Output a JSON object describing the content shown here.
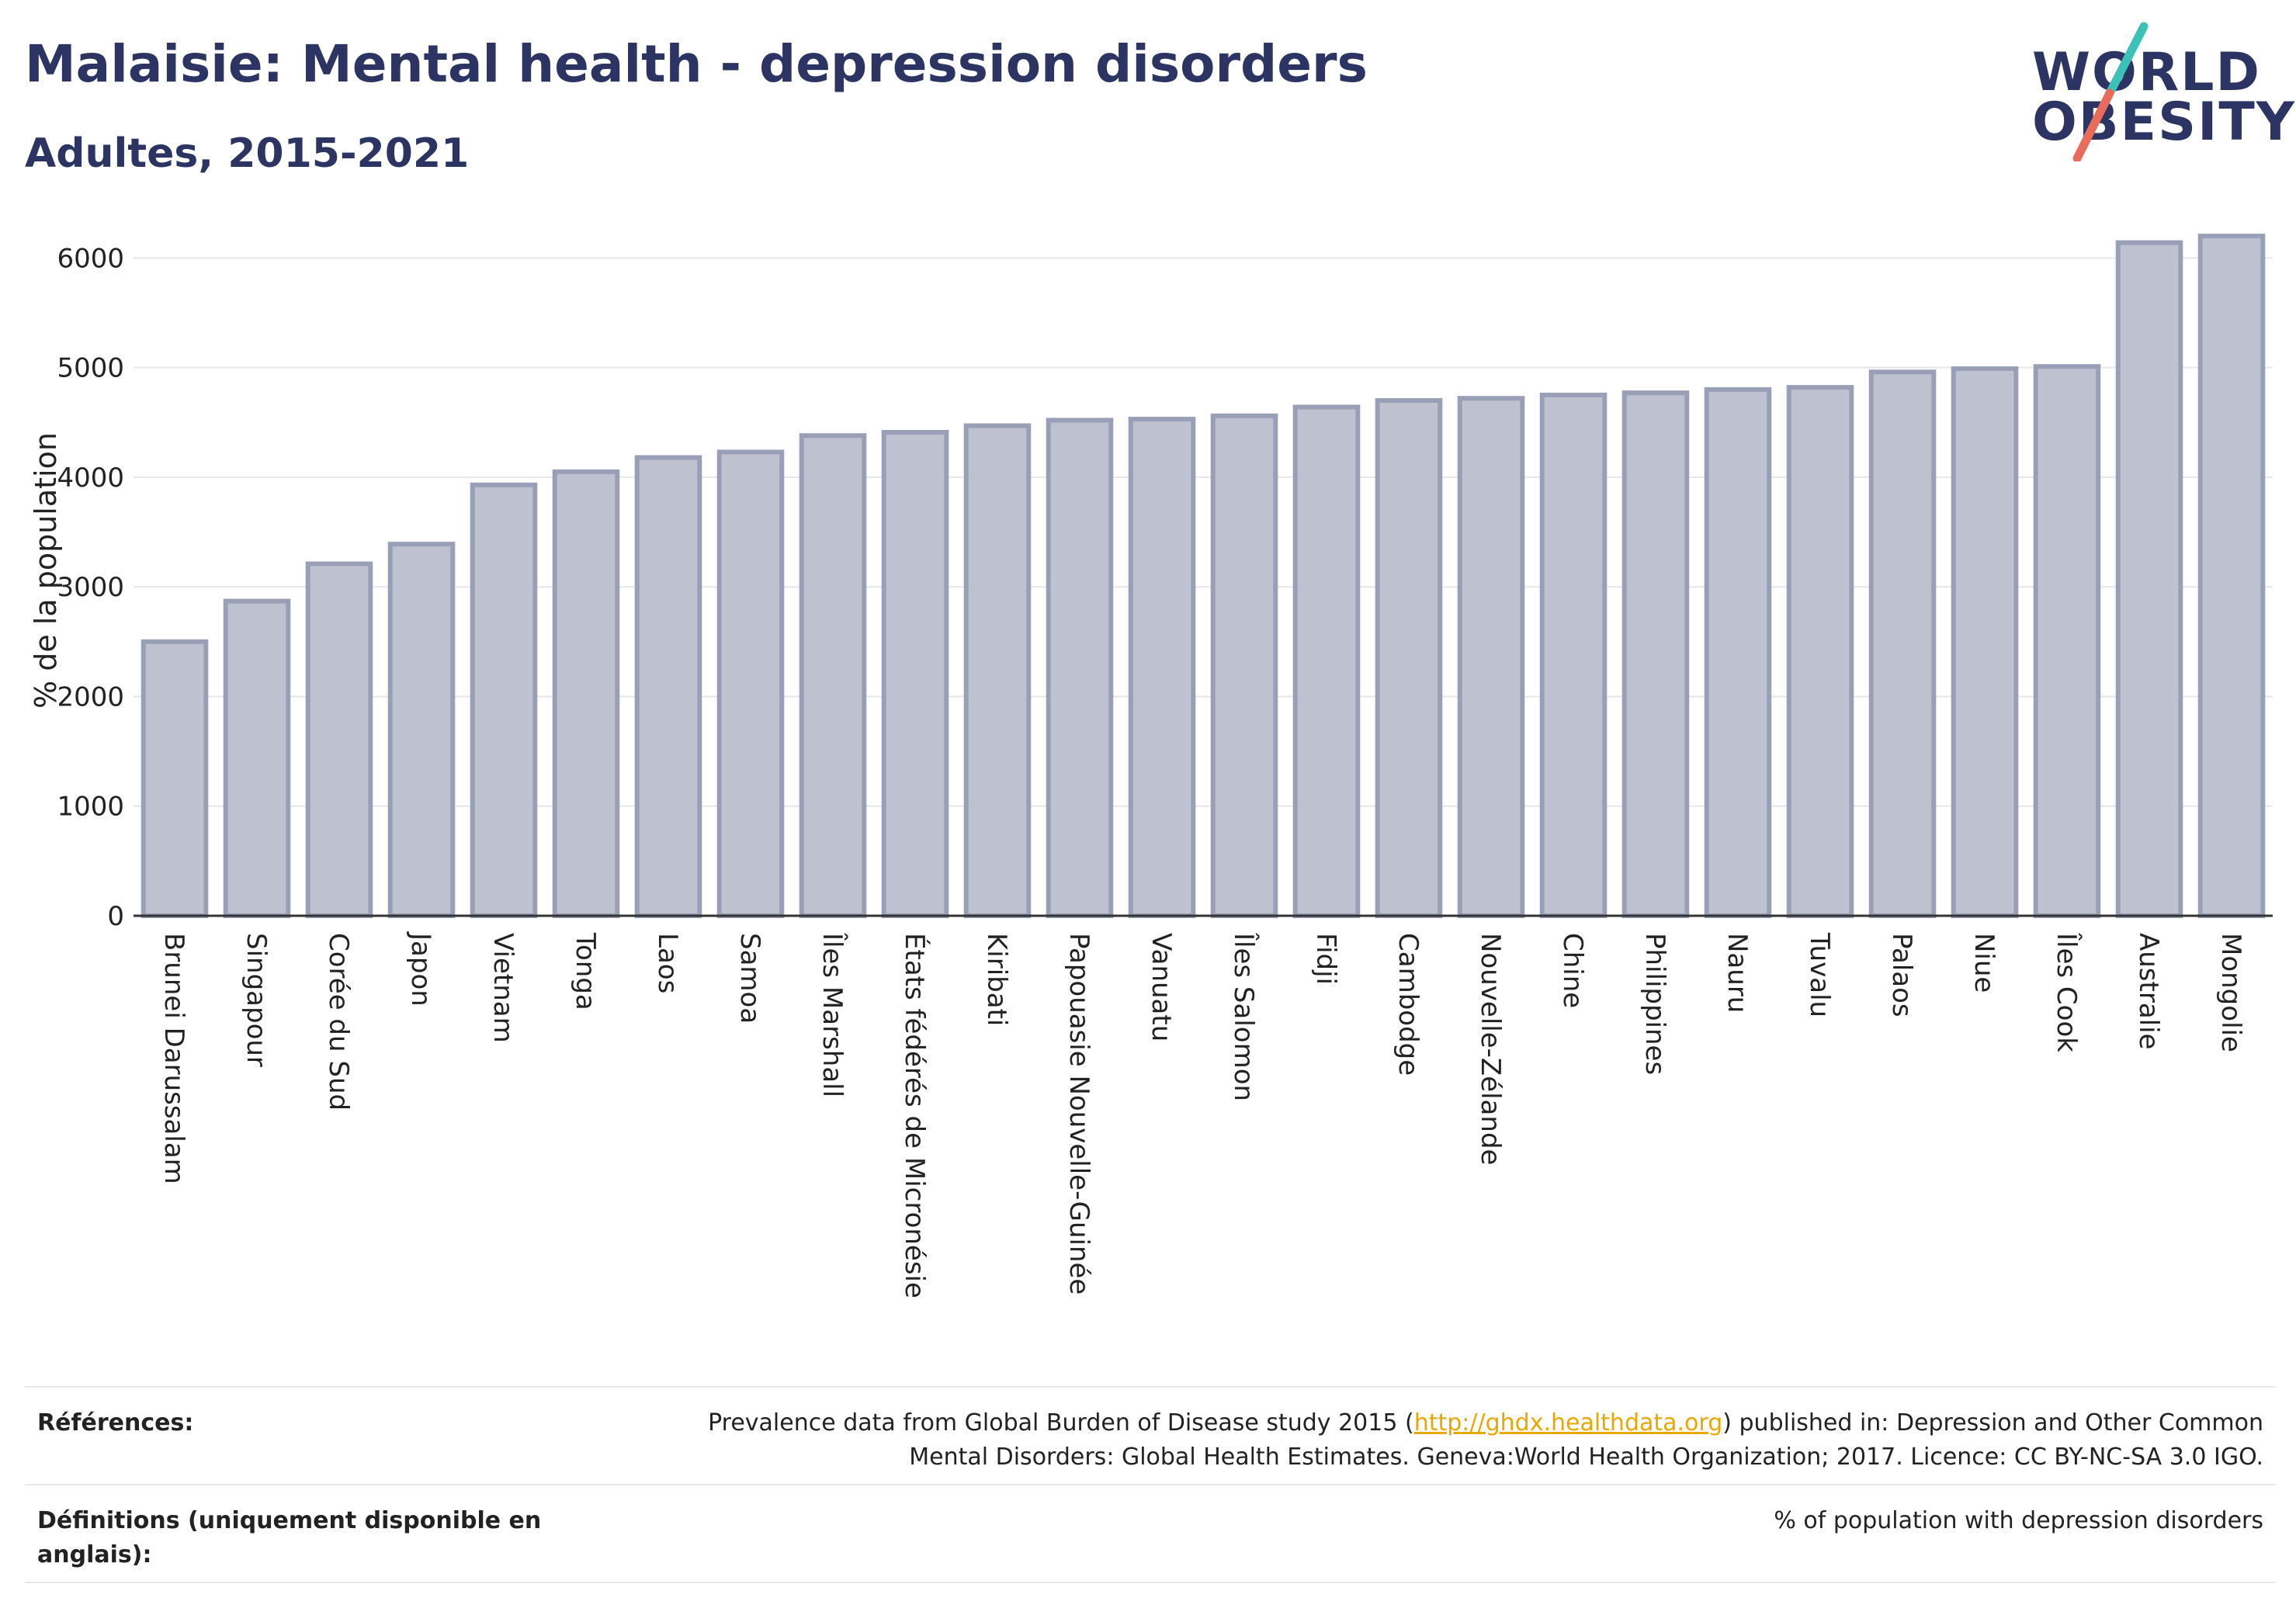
{
  "header": {
    "title": "Malaisie: Mental health - depression disorders",
    "subtitle": "Adultes, 2015-2021"
  },
  "logo": {
    "line1": "WORLD",
    "line2": "OBESITY",
    "colors": {
      "text": "#2b3463",
      "slash_top": "#3cc1b8",
      "slash_bottom": "#e96b5b"
    }
  },
  "colors": {
    "bar_fill": "#bec1cf",
    "bar_stroke": "#9a9fb8",
    "grid": "#e6e6ea",
    "axis": "#333333"
  },
  "chart_data": {
    "type": "bar",
    "title": "Malaisie: Mental health - depression disorders",
    "subtitle": "Adultes, 2015-2021",
    "xlabel": "",
    "ylabel": "% de la population",
    "ylim": [
      0,
      6300
    ],
    "yticks": [
      0,
      1000,
      2000,
      3000,
      4000,
      5000,
      6000
    ],
    "grid": true,
    "categories": [
      "Brunei Darussalam",
      "Singapour",
      "Corée du Sud",
      "Japon",
      "Vietnam",
      "Tonga",
      "Laos",
      "Samoa",
      "Îles Marshall",
      "États fédérés de Micronésie",
      "Kiribati",
      "Papouasie Nouvelle-Guinée",
      "Vanuatu",
      "Îles Salomon",
      "Fidji",
      "Cambodge",
      "Nouvelle-Zélande",
      "Chine",
      "Philippines",
      "Nauru",
      "Tuvalu",
      "Palaos",
      "Niue",
      "Îles Cook",
      "Australie",
      "Mongolie"
    ],
    "values": [
      2500,
      2870,
      3210,
      3390,
      3930,
      4050,
      4180,
      4230,
      4380,
      4410,
      4470,
      4520,
      4530,
      4560,
      4640,
      4700,
      4720,
      4750,
      4770,
      4800,
      4820,
      4960,
      4990,
      5010,
      6140,
      6200
    ]
  },
  "footer": {
    "references_label": "Références:",
    "references_before": "Prevalence data from Global Burden of Disease study 2015 (",
    "references_link": "http://ghdx.healthdata.org",
    "references_after": ") published in: Depression and Other Common Mental Disorders: Global Health Estimates. Geneva:World Health Organization; 2017. Licence: CC BY-NC-SA 3.0 IGO.",
    "definitions_label": "Définitions (uniquement disponible en anglais):",
    "definitions_text": "% of population with depression disorders"
  }
}
